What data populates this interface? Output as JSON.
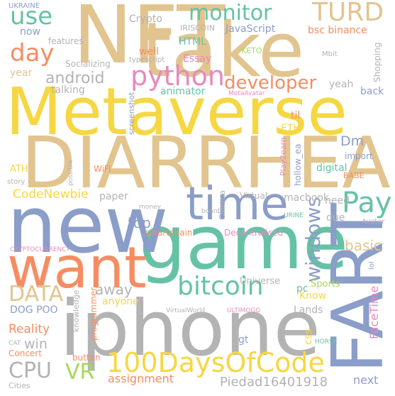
{
  "palette": {
    "gold": "#f6d743",
    "tan": "#e2c48f",
    "slate": "#8b9dc9",
    "teal": "#66c2a5",
    "coral": "#f58d62",
    "pink": "#e58ac0",
    "grey": "#b3b3b3",
    "green": "#a6d854"
  },
  "words": [
    {
      "text": "NFT",
      "color": "tan",
      "weight": 100
    },
    {
      "text": "take",
      "color": "tan",
      "weight": 97
    },
    {
      "text": "Metaverse",
      "color": "gold",
      "weight": 95
    },
    {
      "text": "DIARRHEA",
      "color": "tan",
      "weight": 93
    },
    {
      "text": "game",
      "color": "teal",
      "weight": 90
    },
    {
      "text": "new",
      "color": "slate",
      "weight": 88
    },
    {
      "text": "iphone",
      "color": "grey",
      "weight": 86
    },
    {
      "text": "FART",
      "color": "slate",
      "weight": 84
    },
    {
      "text": "want",
      "color": "coral",
      "weight": 82
    },
    {
      "text": "time",
      "color": "slate",
      "weight": 70
    },
    {
      "text": "100DaysOfCode",
      "color": "gold",
      "weight": 60
    },
    {
      "text": "bitcoin",
      "color": "teal",
      "weight": 58
    },
    {
      "text": "python",
      "color": "pink",
      "weight": 56
    },
    {
      "text": "monitor",
      "color": "teal",
      "weight": 54
    },
    {
      "text": "TURD",
      "color": "tan",
      "weight": 53
    },
    {
      "text": "use",
      "color": "teal",
      "weight": 52
    },
    {
      "text": "day",
      "color": "coral",
      "weight": 50
    },
    {
      "text": "Pay",
      "color": "teal",
      "weight": 50
    },
    {
      "text": "windows",
      "color": "slate",
      "weight": 48
    },
    {
      "text": "developer",
      "color": "coral",
      "weight": 47
    },
    {
      "text": "DATA",
      "color": "tan",
      "weight": 46
    },
    {
      "text": "CPU",
      "color": "grey",
      "weight": 45
    },
    {
      "text": "VR",
      "color": "green",
      "weight": 44
    },
    {
      "text": "android",
      "color": "grey",
      "weight": 43
    },
    {
      "text": "FaceTime",
      "color": "pink",
      "weight": 42
    },
    {
      "text": "Piedad16401918",
      "color": "grey",
      "weight": 40
    },
    {
      "text": "CodeNewbie",
      "color": "gold",
      "weight": 38
    },
    {
      "text": "Reality",
      "color": "coral",
      "weight": 37
    },
    {
      "text": "away",
      "color": "grey",
      "weight": 36
    },
    {
      "text": "basic",
      "color": "tan",
      "weight": 35
    },
    {
      "text": "top",
      "color": "slate",
      "weight": 34
    },
    {
      "text": "Dm",
      "color": "slate",
      "weight": 33
    },
    {
      "text": "win",
      "color": "grey",
      "weight": 32
    },
    {
      "text": "assignment",
      "color": "coral",
      "weight": 31
    },
    {
      "text": "next",
      "color": "slate",
      "weight": 30
    },
    {
      "text": "Crypto",
      "color": "grey",
      "weight": 28
    },
    {
      "text": "JavaScript",
      "color": "slate",
      "weight": 28
    },
    {
      "text": "bsc binance",
      "color": "coral",
      "weight": 28
    },
    {
      "text": "well",
      "color": "coral",
      "weight": 27
    },
    {
      "text": "HTML",
      "color": "teal",
      "weight": 27
    },
    {
      "text": "Essay",
      "color": "pink",
      "weight": 27
    },
    {
      "text": "animator",
      "color": "teal",
      "weight": 27
    },
    {
      "text": "talking",
      "color": "grey",
      "weight": 26
    },
    {
      "text": "yeah",
      "color": "grey",
      "weight": 26
    },
    {
      "text": "back",
      "color": "slate",
      "weight": 26
    },
    {
      "text": "year",
      "color": "tan",
      "weight": 26
    },
    {
      "text": "now",
      "color": "slate",
      "weight": 26
    },
    {
      "text": "features",
      "color": "grey",
      "weight": 24
    },
    {
      "text": "Socializing",
      "color": "grey",
      "weight": 24
    },
    {
      "text": "Shopping",
      "color": "grey",
      "weight": 24
    },
    {
      "text": "paper",
      "color": "grey",
      "weight": 25
    },
    {
      "text": "macbook",
      "color": "grey",
      "weight": 25
    },
    {
      "text": "Virtual",
      "color": "grey",
      "weight": 24
    },
    {
      "text": "due",
      "color": "grey",
      "weight": 25
    },
    {
      "text": "need",
      "color": "grey",
      "weight": 25
    },
    {
      "text": "ETH",
      "color": "gold",
      "weight": 25
    },
    {
      "text": "til",
      "color": "coral",
      "weight": 25
    },
    {
      "text": "digital",
      "color": "teal",
      "weight": 24
    },
    {
      "text": "ATH",
      "color": "gold",
      "weight": 24
    },
    {
      "text": "gt",
      "color": "slate",
      "weight": 24
    },
    {
      "text": "Lands",
      "color": "grey",
      "weight": 24
    },
    {
      "text": "Know",
      "color": "gold",
      "weight": 24
    },
    {
      "text": "css",
      "color": "gold",
      "weight": 24
    },
    {
      "text": "pc",
      "color": "teal",
      "weight": 24
    },
    {
      "text": "Sports",
      "color": "green",
      "weight": 24
    },
    {
      "text": "Universe",
      "color": "grey",
      "weight": 24
    },
    {
      "text": "anyone",
      "color": "gold",
      "weight": 24
    },
    {
      "text": "DOG POO",
      "color": "slate",
      "weight": 24
    },
    {
      "text": "Concert",
      "color": "coral",
      "weight": 23
    },
    {
      "text": "button",
      "color": "coral",
      "weight": 22
    },
    {
      "text": "Cities",
      "color": "grey",
      "weight": 22
    },
    {
      "text": "programmer",
      "color": "coral",
      "weight": 22
    },
    {
      "text": "Decentralised",
      "color": "pink",
      "weight": 22
    },
    {
      "text": "smartchain",
      "color": "coral",
      "weight": 22
    },
    {
      "text": "Cinema",
      "color": "grey",
      "weight": 22
    },
    {
      "text": "screenshot",
      "color": "slate",
      "weight": 21
    },
    {
      "text": "hollow_ea",
      "color": "slate",
      "weight": 21
    },
    {
      "text": "Play2earn",
      "color": "pink",
      "weight": 20
    },
    {
      "text": "import",
      "color": "slate",
      "weight": 21
    },
    {
      "text": "knowledge",
      "color": "grey",
      "weight": 20
    },
    {
      "text": "IRISCOIN",
      "color": "grey",
      "weight": 20
    },
    {
      "text": "UKRAINE",
      "color": "slate",
      "weight": 19
    },
    {
      "text": "typescript",
      "color": "grey",
      "weight": 18
    },
    {
      "text": "KETO",
      "color": "green",
      "weight": 19
    },
    {
      "text": "Mbit",
      "color": "grey",
      "weight": 18
    },
    {
      "text": "MetaAvatar",
      "color": "pink",
      "weight": 18
    },
    {
      "text": "WiFi",
      "color": "coral",
      "weight": 20
    },
    {
      "text": "possible",
      "color": "grey",
      "weight": 17
    },
    {
      "text": "story",
      "color": "grey",
      "weight": 18
    },
    {
      "text": "BABE",
      "color": "coral",
      "weight": 19
    },
    {
      "text": "money",
      "color": "grey",
      "weight": 18
    },
    {
      "text": "board",
      "color": "grey",
      "weight": 18
    },
    {
      "text": "URINE",
      "color": "teal",
      "weight": 18
    },
    {
      "text": "Avatar",
      "color": "grey",
      "weight": 18
    },
    {
      "text": "CRYPTOCURRENCY",
      "color": "pink",
      "weight": 17
    },
    {
      "text": "lol",
      "color": "slate",
      "weight": 18
    },
    {
      "text": "VirtualWorld",
      "color": "grey",
      "weight": 18
    },
    {
      "text": "ULTIMOGG",
      "color": "pink",
      "weight": 17
    },
    {
      "text": "CAT",
      "color": "grey",
      "weight": 17
    },
    {
      "text": "HORSE",
      "color": "teal",
      "weight": 17
    }
  ]
}
